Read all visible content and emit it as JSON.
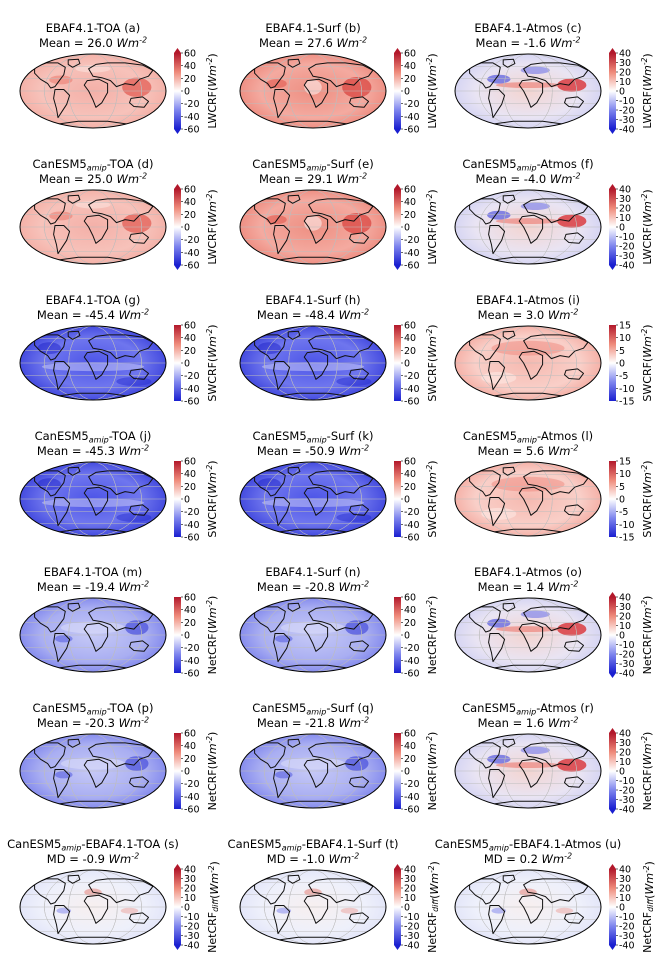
{
  "panels": [
    {
      "id": "a",
      "title": "EBAF4.1-TOA (a)",
      "stat_label": "Mean",
      "stat_value": "26.0",
      "unit": "Wm",
      "unit_exp": "-2",
      "bar": "lw",
      "cbar_label": "LWCRF",
      "cbar_sub": "",
      "pattern": "warm",
      "ticks": [
        60,
        40,
        20,
        0,
        -20,
        -40,
        -60
      ],
      "vmax": 60,
      "extend": true
    },
    {
      "id": "b",
      "title": "EBAF4.1-Surf (b)",
      "stat_label": "Mean",
      "stat_value": "27.6",
      "unit": "Wm",
      "unit_exp": "-2",
      "bar": "lw",
      "cbar_label": "LWCRF",
      "cbar_sub": "",
      "pattern": "warm_strong",
      "ticks": [
        60,
        40,
        20,
        0,
        -20,
        -40,
        -60
      ],
      "vmax": 60,
      "extend": true
    },
    {
      "id": "c",
      "title": "EBAF4.1-Atmos (c)",
      "stat_label": "Mean",
      "stat_value": "-1.6",
      "unit": "Wm",
      "unit_exp": "-2",
      "bar": "lw",
      "cbar_label": "LWCRF",
      "cbar_sub": "",
      "pattern": "atmos",
      "ticks": [
        40,
        30,
        20,
        10,
        0,
        -10,
        -20,
        -30,
        -40
      ],
      "vmax": 40,
      "extend": true
    },
    {
      "id": "d",
      "title_pre": "CanESM5",
      "title_sub": "amip",
      "title_post": "-TOA (d)",
      "stat_label": "Mean",
      "stat_value": "25.0",
      "unit": "Wm",
      "unit_exp": "-2",
      "bar": "lw",
      "cbar_label": "LWCRF",
      "cbar_sub": "",
      "pattern": "warm",
      "ticks": [
        60,
        40,
        20,
        0,
        -20,
        -40,
        -60
      ],
      "vmax": 60,
      "extend": true
    },
    {
      "id": "e",
      "title_pre": "CanESM5",
      "title_sub": "amip",
      "title_post": "-Surf (e)",
      "stat_label": "Mean",
      "stat_value": "29.1",
      "unit": "Wm",
      "unit_exp": "-2",
      "bar": "lw",
      "cbar_label": "LWCRF",
      "cbar_sub": "",
      "pattern": "warm_strong",
      "ticks": [
        60,
        40,
        20,
        0,
        -20,
        -40,
        -60
      ],
      "vmax": 60,
      "extend": true
    },
    {
      "id": "f",
      "title_pre": "CanESM5",
      "title_sub": "amip",
      "title_post": "-Atmos (f)",
      "stat_label": "Mean",
      "stat_value": "-4.0",
      "unit": "Wm",
      "unit_exp": "-2",
      "bar": "lw",
      "cbar_label": "LWCRF",
      "cbar_sub": "",
      "pattern": "atmos",
      "ticks": [
        40,
        30,
        20,
        10,
        0,
        -10,
        -20,
        -30,
        -40
      ],
      "vmax": 40,
      "extend": true
    },
    {
      "id": "g",
      "title": "EBAF4.1-TOA (g)",
      "stat_label": "Mean",
      "stat_value": "-45.4",
      "unit": "Wm",
      "unit_exp": "-2",
      "bar": "sw",
      "cbar_label": "SWCRF",
      "cbar_sub": "",
      "pattern": "cool",
      "ticks": [
        60,
        40,
        20,
        0,
        -20,
        -40,
        -60
      ],
      "vmax": 60,
      "extend": false
    },
    {
      "id": "h",
      "title": "EBAF4.1-Surf (h)",
      "stat_label": "Mean",
      "stat_value": "-48.4",
      "unit": "Wm",
      "unit_exp": "-2",
      "bar": "sw",
      "cbar_label": "SWCRF",
      "cbar_sub": "",
      "pattern": "cool",
      "ticks": [
        60,
        40,
        20,
        0,
        -20,
        -40,
        -60
      ],
      "vmax": 60,
      "extend": false
    },
    {
      "id": "i",
      "title": "EBAF4.1-Atmos (i)",
      "stat_label": "Mean",
      "stat_value": "3.0",
      "unit": "Wm",
      "unit_exp": "-2",
      "bar": "sw",
      "cbar_label": "SWCRF",
      "cbar_sub": "",
      "pattern": "pink",
      "ticks": [
        15,
        10,
        5,
        0,
        -5,
        -10,
        -15
      ],
      "vmax": 15,
      "extend": false
    },
    {
      "id": "j",
      "title_pre": "CanESM5",
      "title_sub": "amip",
      "title_post": "-TOA (j)",
      "stat_label": "Mean",
      "stat_value": "-45.3",
      "unit": "Wm",
      "unit_exp": "-2",
      "bar": "sw",
      "cbar_label": "SWCRF",
      "cbar_sub": "",
      "pattern": "cool",
      "ticks": [
        60,
        40,
        20,
        0,
        -20,
        -40,
        -60
      ],
      "vmax": 60,
      "extend": false
    },
    {
      "id": "k",
      "title_pre": "CanESM5",
      "title_sub": "amip",
      "title_post": "-Surf (k)",
      "stat_label": "Mean",
      "stat_value": "-50.9",
      "unit": "Wm",
      "unit_exp": "-2",
      "bar": "sw",
      "cbar_label": "SWCRF",
      "cbar_sub": "",
      "pattern": "cool",
      "ticks": [
        60,
        40,
        20,
        0,
        -20,
        -40,
        -60
      ],
      "vmax": 60,
      "extend": false
    },
    {
      "id": "l",
      "title_pre": "CanESM5",
      "title_sub": "amip",
      "title_post": "-Atmos (l)",
      "stat_label": "Mean",
      "stat_value": "5.6",
      "unit": "Wm",
      "unit_exp": "-2",
      "bar": "sw",
      "cbar_label": "SWCRF",
      "cbar_sub": "",
      "pattern": "pink",
      "ticks": [
        15,
        10,
        5,
        0,
        -5,
        -10,
        -15
      ],
      "vmax": 15,
      "extend": false
    },
    {
      "id": "m",
      "title": "EBAF4.1-TOA (m)",
      "stat_label": "Mean",
      "stat_value": "-19.4",
      "unit": "Wm",
      "unit_exp": "-2",
      "bar": "net",
      "cbar_label": "NetCRF",
      "cbar_sub": "",
      "pattern": "net",
      "ticks": [
        60,
        40,
        20,
        0,
        -20,
        -40,
        -60
      ],
      "vmax": 60,
      "extend": false
    },
    {
      "id": "n",
      "title": "EBAF4.1-Surf (n)",
      "stat_label": "Mean",
      "stat_value": "-20.8",
      "unit": "Wm",
      "unit_exp": "-2",
      "bar": "net",
      "cbar_label": "NetCRF",
      "cbar_sub": "",
      "pattern": "net",
      "ticks": [
        60,
        40,
        20,
        0,
        -20,
        -40,
        -60
      ],
      "vmax": 60,
      "extend": false
    },
    {
      "id": "o",
      "title": "EBAF4.1-Atmos (o)",
      "stat_label": "Mean",
      "stat_value": "1.4",
      "unit": "Wm",
      "unit_exp": "-2",
      "bar": "net",
      "cbar_label": "NetCRF",
      "cbar_sub": "",
      "pattern": "atmos",
      "ticks": [
        40,
        30,
        20,
        10,
        0,
        -10,
        -20,
        -30,
        -40
      ],
      "vmax": 40,
      "extend": true
    },
    {
      "id": "p",
      "title_pre": "CanESM5",
      "title_sub": "amip",
      "title_post": "-TOA (p)",
      "stat_label": "Mean",
      "stat_value": "-20.3",
      "unit": "Wm",
      "unit_exp": "-2",
      "bar": "net",
      "cbar_label": "NetCRF",
      "cbar_sub": "",
      "pattern": "net",
      "ticks": [
        60,
        40,
        20,
        0,
        -20,
        -40,
        -60
      ],
      "vmax": 60,
      "extend": false
    },
    {
      "id": "q",
      "title_pre": "CanESM5",
      "title_sub": "amip",
      "title_post": "-Surf (q)",
      "stat_label": "Mean",
      "stat_value": "-21.8",
      "unit": "Wm",
      "unit_exp": "-2",
      "bar": "net",
      "cbar_label": "NetCRF",
      "cbar_sub": "",
      "pattern": "net",
      "ticks": [
        60,
        40,
        20,
        0,
        -20,
        -40,
        -60
      ],
      "vmax": 60,
      "extend": false
    },
    {
      "id": "r",
      "title_pre": "CanESM5",
      "title_sub": "amip",
      "title_post": "-Atmos (r)",
      "stat_label": "Mean",
      "stat_value": "1.6",
      "unit": "Wm",
      "unit_exp": "-2",
      "bar": "net",
      "cbar_label": "NetCRF",
      "cbar_sub": "",
      "pattern": "atmos",
      "ticks": [
        40,
        30,
        20,
        10,
        0,
        -10,
        -20,
        -30,
        -40
      ],
      "vmax": 40,
      "extend": true
    },
    {
      "id": "s",
      "title_pre": "CanESM5",
      "title_sub": "amip",
      "title_post": "-EBAF4.1-TOA (s)",
      "stat_label": "MD",
      "stat_value": "-0.9",
      "unit": "Wm",
      "unit_exp": "-2",
      "bar": "diff",
      "cbar_label": "NetCRF",
      "cbar_sub": "diff",
      "pattern": "diff",
      "ticks": [
        40,
        30,
        20,
        10,
        0,
        -10,
        -20,
        -30,
        -40
      ],
      "vmax": 40,
      "extend": true
    },
    {
      "id": "t",
      "title_pre": "CanESM5",
      "title_sub": "amip",
      "title_post": "-EBAF4.1-Surf (t)",
      "stat_label": "MD",
      "stat_value": "-1.0",
      "unit": "Wm",
      "unit_exp": "-2",
      "bar": "diff",
      "cbar_label": "NetCRF",
      "cbar_sub": "diff",
      "pattern": "diff",
      "ticks": [
        40,
        30,
        20,
        10,
        0,
        -10,
        -20,
        -30,
        -40
      ],
      "vmax": 40,
      "extend": true
    },
    {
      "id": "u",
      "title_pre": "CanESM5",
      "title_sub": "amip",
      "title_post": "-EBAF4.1-Atmos (u)",
      "stat_label": "MD",
      "stat_value": "0.2",
      "unit": "Wm",
      "unit_exp": "-2",
      "bar": "diff",
      "cbar_label": "NetCRF",
      "cbar_sub": "diff",
      "pattern": "diff",
      "ticks": [
        40,
        30,
        20,
        10,
        0,
        -10,
        -20,
        -30,
        -40
      ],
      "vmax": 40,
      "extend": true
    }
  ],
  "colors": {
    "red": "#b2182b",
    "white": "#ffffff",
    "blue": "#2b2fd0",
    "coast": "#111111",
    "grid": "#bdbdbd"
  }
}
